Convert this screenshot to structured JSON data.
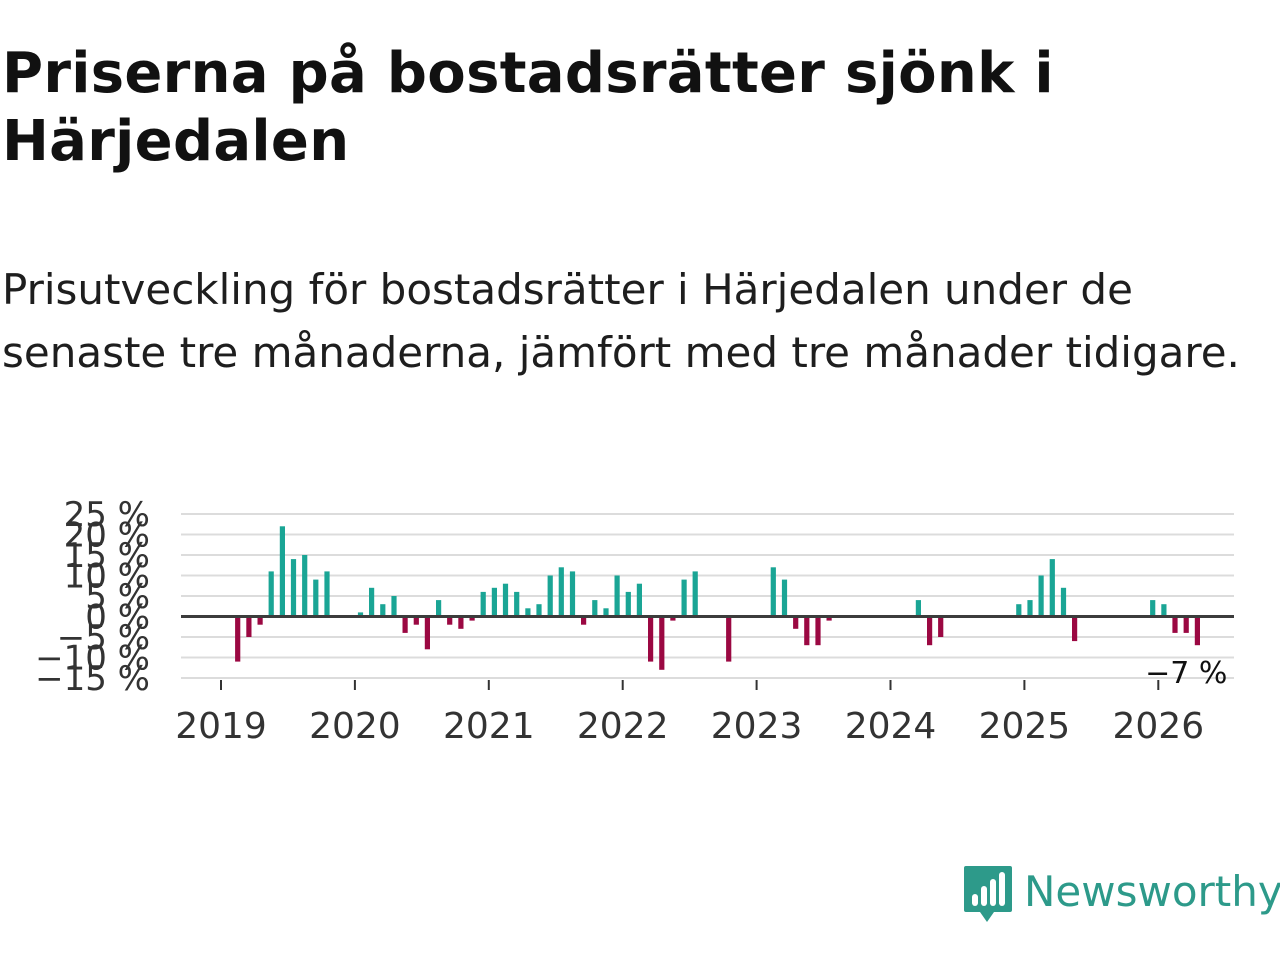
{
  "header": {
    "title": "Priserna på bostadsrätter sjönk i Härjedalen",
    "subtitle": "Prisutveckling för bostadsrätter i Härjedalen under de senaste tre månaderna, jämfört med tre månader tidigare."
  },
  "colors": {
    "positive": "#1aa595",
    "negative": "#9b0842",
    "zero_line": "#3c3c3c",
    "grid": "#dcdcdc",
    "logo": "#2d9a8a"
  },
  "chart_data": {
    "type": "bar",
    "title": "Prisutveckling för bostadsrätter i Härjedalen",
    "xlabel": "",
    "ylabel": "",
    "unit": "%",
    "ylim": [
      -15,
      25
    ],
    "yticks": [
      25,
      20,
      15,
      10,
      5,
      0,
      -5,
      -10,
      -15
    ],
    "ytick_labels": [
      "25 %",
      "20 %",
      "15 %",
      "10 %",
      "5 %",
      "0 %",
      "−5 %",
      "−10 %",
      "−15 %"
    ],
    "xticks": [
      "2019",
      "2020",
      "2021",
      "2022",
      "2023",
      "2024",
      "2025",
      "2026"
    ],
    "x_start": "2019-01",
    "grid": true,
    "annotation": {
      "label": "−7 %",
      "index": 86
    },
    "values": [
      null,
      -11,
      -5,
      -2,
      11,
      22,
      14,
      15,
      9,
      11,
      null,
      null,
      1,
      7,
      3,
      5,
      -4,
      -2,
      -8,
      4,
      -2,
      -3,
      -1,
      6,
      7,
      8,
      6,
      2,
      3,
      10,
      12,
      11,
      -2,
      4,
      2,
      10,
      6,
      8,
      -11,
      -13,
      -1,
      9,
      11,
      null,
      null,
      -11,
      null,
      null,
      null,
      12,
      9,
      -3,
      -7,
      -7,
      -1,
      null,
      null,
      null,
      null,
      null,
      null,
      null,
      null,
      null,
      null,
      null,
      null,
      null,
      null,
      null,
      null,
      null,
      null,
      null,
      null,
      null,
      null,
      null,
      null,
      null,
      null,
      null,
      null,
      null,
      null,
      null,
      null
    ],
    "values_tail": {
      "2024-03": 4,
      "2024-04": -7,
      "2024-05": -5,
      "2024-12": 3,
      "2025-01": 4,
      "2025-02": 10,
      "2025-03": 14,
      "2025-04": 7,
      "2025-05": -6,
      "2025-12": 4,
      "2026-01": 3,
      "2026-02": -4,
      "2026-03": -4,
      "2026-04": -7
    }
  },
  "branding": {
    "logo_text": "Newsworthy"
  }
}
